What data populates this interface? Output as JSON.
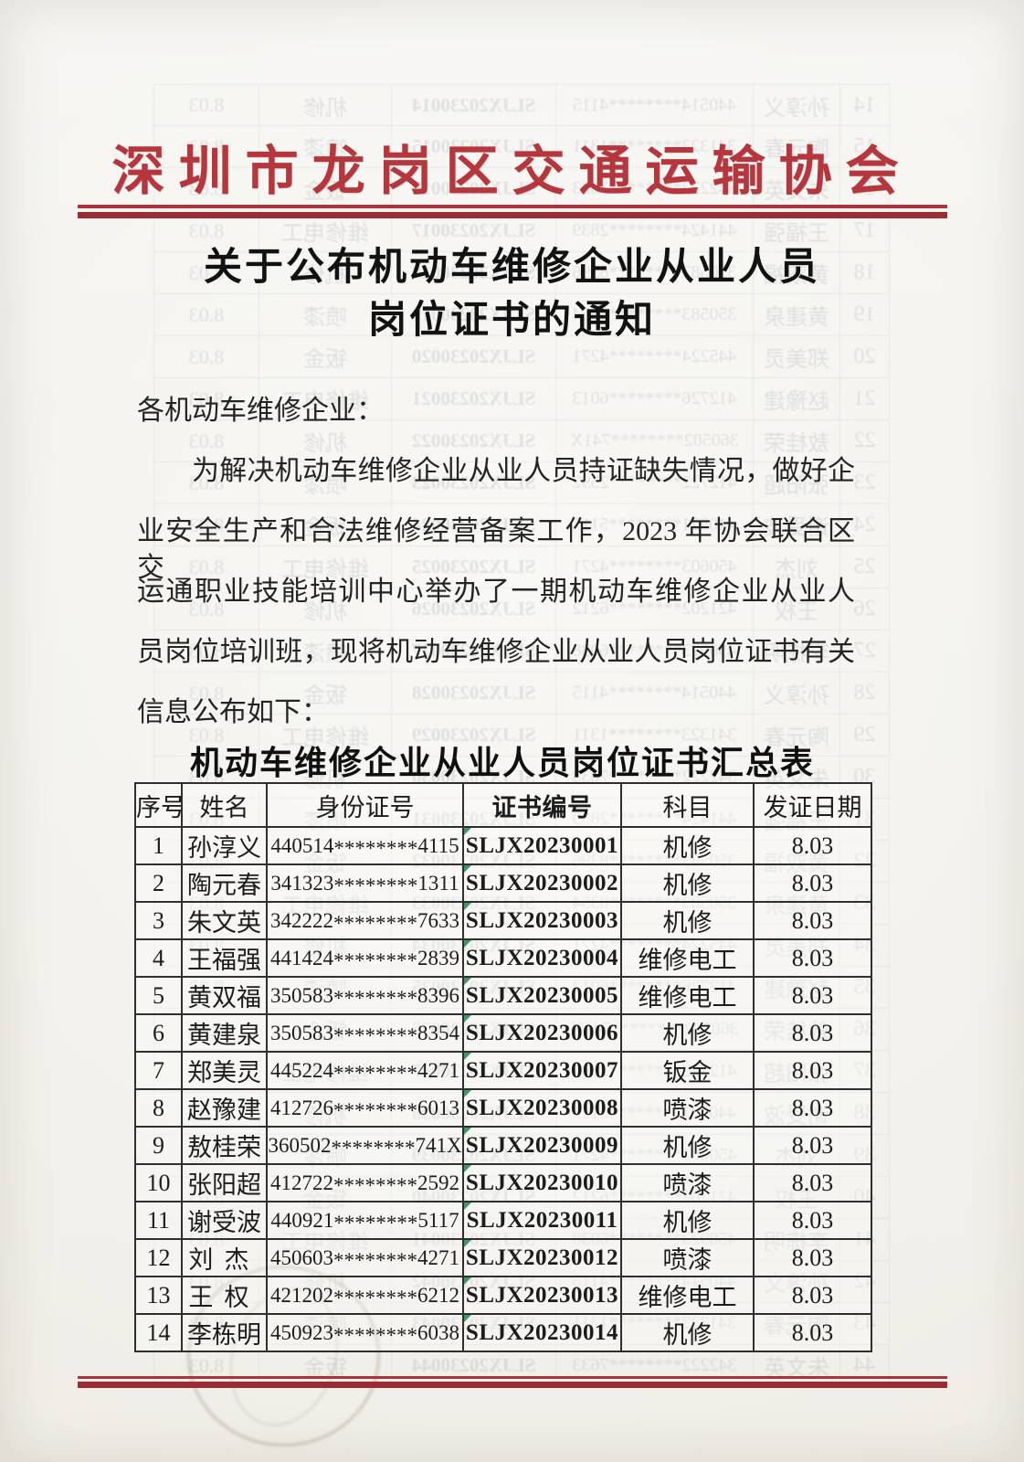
{
  "document": {
    "masthead": "深圳市龙岗区交通运输协会",
    "title_line1": "关于公布机动车维修企业从业人员",
    "title_line2": "岗位证书的通知",
    "salutation": "各机动车维修企业：",
    "body_lines": [
      "为解决机动车维修企业从业人员持证缺失情况，做好企",
      "业安全生产和合法维修经营备案工作，2023 年协会联合区交",
      "运通职业技能培训中心举办了一期机动车维修企业从业人",
      "员岗位培训班，现将机动车维修企业从业人员岗位证书有关",
      "信息公布如下："
    ],
    "table_title": "机动车维修企业从业人员岗位证书汇总表"
  },
  "table": {
    "headers": [
      "序号",
      "姓名",
      "身份证号",
      "证书编号",
      "科目",
      "发证日期"
    ],
    "rows": [
      [
        "1",
        "孙淳义",
        "440514********4115",
        "SLJX20230001",
        "机修",
        "8.03"
      ],
      [
        "2",
        "陶元春",
        "341323********1311",
        "SLJX20230002",
        "机修",
        "8.03"
      ],
      [
        "3",
        "朱文英",
        "342222********7633",
        "SLJX20230003",
        "机修",
        "8.03"
      ],
      [
        "4",
        "王福强",
        "441424********2839",
        "SLJX20230004",
        "维修电工",
        "8.03"
      ],
      [
        "5",
        "黄双福",
        "350583********8396",
        "SLJX20230005",
        "维修电工",
        "8.03"
      ],
      [
        "6",
        "黄建泉",
        "350583********8354",
        "SLJX20230006",
        "机修",
        "8.03"
      ],
      [
        "7",
        "郑美灵",
        "445224********4271",
        "SLJX20230007",
        "钣金",
        "8.03"
      ],
      [
        "8",
        "赵豫建",
        "412726********6013",
        "SLJX20230008",
        "喷漆",
        "8.03"
      ],
      [
        "9",
        "敖桂荣",
        "360502********741X",
        "SLJX20230009",
        "机修",
        "8.03"
      ],
      [
        "10",
        "张阳超",
        "412722********2592",
        "SLJX20230010",
        "喷漆",
        "8.03"
      ],
      [
        "11",
        "谢受波",
        "440921********5117",
        "SLJX20230011",
        "机修",
        "8.03"
      ],
      [
        "12",
        "刘杰",
        "450603********4271",
        "SLJX20230012",
        "喷漆",
        "8.03"
      ],
      [
        "13",
        "王权",
        "421202********6212",
        "SLJX20230013",
        "维修电工",
        "8.03"
      ],
      [
        "14",
        "李栋明",
        "450923********6038",
        "SLJX20230014",
        "机修",
        "8.03"
      ]
    ]
  },
  "bleedthrough": {
    "description": "mirrored table rows showing through from reverse side of sheet",
    "row_start": 14,
    "row_end": 44,
    "code_prefix": "SLJX202300",
    "date": "8.03",
    "subjects_cycle": [
      "机修",
      "喷漆",
      "钣金",
      "维修电工"
    ]
  },
  "colors": {
    "masthead_red": "#b5363d",
    "rule_red": "#9c2c33",
    "ink": "#1f1f1f",
    "paper": "#f1efe9",
    "corner_mark_green": "#1d8a45",
    "ghost_ink": "#4c5568"
  }
}
